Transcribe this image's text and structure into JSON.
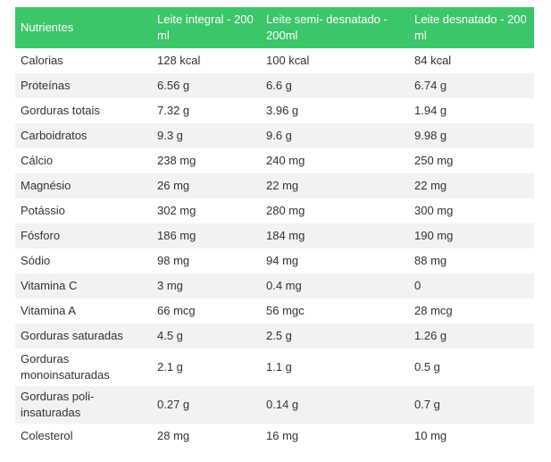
{
  "table": {
    "headers": [
      "Nutrientes",
      "Leite integral - 200 ml",
      "Leite semi- desnatado - 200ml",
      "Leite desnatado - 200 ml"
    ],
    "rows": [
      [
        "Calorias",
        "128 kcal",
        "100 kcal",
        "84 kcal"
      ],
      [
        "Proteínas",
        "6.56 g",
        "6.6 g",
        "6.74 g"
      ],
      [
        "Gorduras totais",
        "7.32 g",
        "3.96 g",
        "1.94 g"
      ],
      [
        "Carboidratos",
        "9.3 g",
        "9.6 g",
        "9.98 g"
      ],
      [
        "Cálcio",
        "238 mg",
        "240 mg",
        "250 mg"
      ],
      [
        "Magnésio",
        "26 mg",
        "22 mg",
        "22 mg"
      ],
      [
        "Potássio",
        "302 mg",
        "280 mg",
        "300 mg"
      ],
      [
        "Fósforo",
        "186 mg",
        "184 mg",
        "190 mg"
      ],
      [
        "Sódio",
        "98 mg",
        "94 mg",
        "88 mg"
      ],
      [
        "Vitamina C",
        "3 mg",
        "0.4 mg",
        "0"
      ],
      [
        "Vitamina A",
        "66 mcg",
        "56 mgc",
        "28 mcg"
      ],
      [
        "Gorduras saturadas",
        "4.5 g",
        "2.5 g",
        "1.26 g"
      ],
      [
        "Gorduras monoinsaturadas",
        "2.1 g",
        "1.1 g",
        "0.5 g"
      ],
      [
        "Gorduras poli-insaturadas",
        "0.27 g",
        "0.14 g",
        "0.7 g"
      ],
      [
        "Colesterol",
        "28 mg",
        "16 mg",
        "10 mg"
      ]
    ]
  }
}
